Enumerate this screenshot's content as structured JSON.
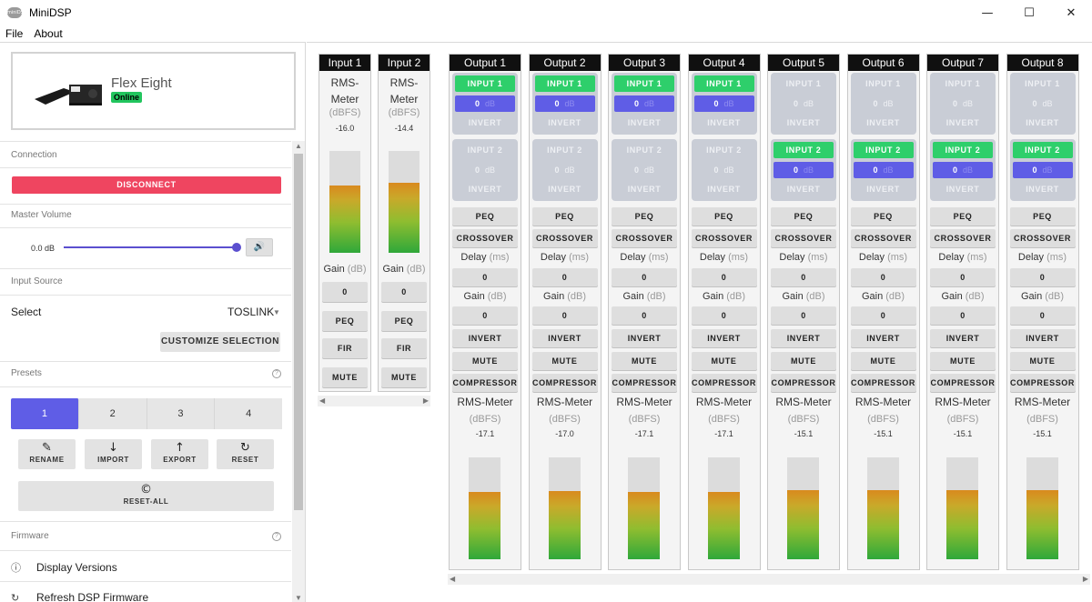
{
  "window": {
    "title": "MiniDSP",
    "icon_text": "miniDSP",
    "controls": {
      "minimize": "—",
      "maximize": "☐",
      "close": "✕"
    }
  },
  "menu": [
    "File",
    "About"
  ],
  "device": {
    "name": "Flex Eight",
    "status": "Online"
  },
  "connection": {
    "label": "Connection",
    "button": "DISCONNECT"
  },
  "master_volume": {
    "label": "Master Volume",
    "value": "0.0 dB",
    "level": 1.0
  },
  "input_source": {
    "label": "Input Source",
    "select_label": "Select",
    "value": "TOSLINK",
    "customize": "CUSTOMIZE SELECTION"
  },
  "presets": {
    "label": "Presets",
    "tabs": [
      "1",
      "2",
      "3",
      "4"
    ],
    "active": "1",
    "actions": [
      {
        "label": "RENAME",
        "icon": "edit-icon"
      },
      {
        "label": "IMPORT",
        "icon": "import-icon"
      },
      {
        "label": "EXPORT",
        "icon": "export-icon"
      },
      {
        "label": "RESET",
        "icon": "reset-icon"
      }
    ],
    "reset_all": "RESET-ALL"
  },
  "firmware": {
    "label": "Firmware",
    "items": [
      "Display Versions",
      "Refresh DSP Firmware"
    ]
  },
  "inputs": [
    {
      "name": "Input 1",
      "meter_title": "RMS-Meter",
      "meter_unit": "(dBFS)",
      "meter_value": "-16.0",
      "level": 0.66,
      "gain_label": "Gain",
      "gain_unit": "(dB)",
      "gain": "0",
      "buttons": [
        "PEQ",
        "FIR",
        "MUTE"
      ]
    },
    {
      "name": "Input 2",
      "meter_title": "RMS-Meter",
      "meter_unit": "(dBFS)",
      "meter_value": "-14.4",
      "level": 0.69,
      "gain_label": "Gain",
      "gain_unit": "(dB)",
      "gain": "0",
      "buttons": [
        "PEQ",
        "FIR",
        "MUTE"
      ]
    }
  ],
  "outputs": [
    {
      "name": "Output 1",
      "routes": [
        {
          "name": "INPUT 1",
          "gain": "0",
          "unit": "dB",
          "invert": "INVERT",
          "active": true
        },
        {
          "name": "INPUT 2",
          "gain": "0",
          "unit": "dB",
          "invert": "INVERT",
          "active": false
        }
      ],
      "peq": "PEQ",
      "crossover": "CROSSOVER",
      "delay_label": "Delay",
      "delay_unit": "(ms)",
      "delay": "0",
      "gain_label": "Gain",
      "gain_unit": "(dB)",
      "gain": "0",
      "invert": "INVERT",
      "mute": "MUTE",
      "compressor": "COMPRESSOR",
      "meter_title": "RMS-Meter",
      "meter_unit": "(dBFS)",
      "meter_value": "-17.1",
      "level": 0.66
    },
    {
      "name": "Output 2",
      "routes": [
        {
          "name": "INPUT 1",
          "gain": "0",
          "unit": "dB",
          "invert": "INVERT",
          "active": true
        },
        {
          "name": "INPUT 2",
          "gain": "0",
          "unit": "dB",
          "invert": "INVERT",
          "active": false
        }
      ],
      "peq": "PEQ",
      "crossover": "CROSSOVER",
      "delay_label": "Delay",
      "delay_unit": "(ms)",
      "delay": "0",
      "gain_label": "Gain",
      "gain_unit": "(dB)",
      "gain": "0",
      "invert": "INVERT",
      "mute": "MUTE",
      "compressor": "COMPRESSOR",
      "meter_title": "RMS-Meter",
      "meter_unit": "(dBFS)",
      "meter_value": "-17.0",
      "level": 0.67
    },
    {
      "name": "Output 3",
      "routes": [
        {
          "name": "INPUT 1",
          "gain": "0",
          "unit": "dB",
          "invert": "INVERT",
          "active": true
        },
        {
          "name": "INPUT 2",
          "gain": "0",
          "unit": "dB",
          "invert": "INVERT",
          "active": false
        }
      ],
      "peq": "PEQ",
      "crossover": "CROSSOVER",
      "delay_label": "Delay",
      "delay_unit": "(ms)",
      "delay": "0",
      "gain_label": "Gain",
      "gain_unit": "(dB)",
      "gain": "0",
      "invert": "INVERT",
      "mute": "MUTE",
      "compressor": "COMPRESSOR",
      "meter_title": "RMS-Meter",
      "meter_unit": "(dBFS)",
      "meter_value": "-17.1",
      "level": 0.66
    },
    {
      "name": "Output 4",
      "routes": [
        {
          "name": "INPUT 1",
          "gain": "0",
          "unit": "dB",
          "invert": "INVERT",
          "active": true
        },
        {
          "name": "INPUT 2",
          "gain": "0",
          "unit": "dB",
          "invert": "INVERT",
          "active": false
        }
      ],
      "peq": "PEQ",
      "crossover": "CROSSOVER",
      "delay_label": "Delay",
      "delay_unit": "(ms)",
      "delay": "0",
      "gain_label": "Gain",
      "gain_unit": "(dB)",
      "gain": "0",
      "invert": "INVERT",
      "mute": "MUTE",
      "compressor": "COMPRESSOR",
      "meter_title": "RMS-Meter",
      "meter_unit": "(dBFS)",
      "meter_value": "-17.1",
      "level": 0.66
    },
    {
      "name": "Output 5",
      "routes": [
        {
          "name": "INPUT 1",
          "gain": "0",
          "unit": "dB",
          "invert": "INVERT",
          "active": false
        },
        {
          "name": "INPUT 2",
          "gain": "0",
          "unit": "dB",
          "invert": "INVERT",
          "active": true
        }
      ],
      "peq": "PEQ",
      "crossover": "CROSSOVER",
      "delay_label": "Delay",
      "delay_unit": "(ms)",
      "delay": "0",
      "gain_label": "Gain",
      "gain_unit": "(dB)",
      "gain": "0",
      "invert": "INVERT",
      "mute": "MUTE",
      "compressor": "COMPRESSOR",
      "meter_title": "RMS-Meter",
      "meter_unit": "(dBFS)",
      "meter_value": "-15.1",
      "level": 0.68
    },
    {
      "name": "Output 6",
      "routes": [
        {
          "name": "INPUT 1",
          "gain": "0",
          "unit": "dB",
          "invert": "INVERT",
          "active": false
        },
        {
          "name": "INPUT 2",
          "gain": "0",
          "unit": "dB",
          "invert": "INVERT",
          "active": true
        }
      ],
      "peq": "PEQ",
      "crossover": "CROSSOVER",
      "delay_label": "Delay",
      "delay_unit": "(ms)",
      "delay": "0",
      "gain_label": "Gain",
      "gain_unit": "(dB)",
      "gain": "0",
      "invert": "INVERT",
      "mute": "MUTE",
      "compressor": "COMPRESSOR",
      "meter_title": "RMS-Meter",
      "meter_unit": "(dBFS)",
      "meter_value": "-15.1",
      "level": 0.68
    },
    {
      "name": "Output 7",
      "routes": [
        {
          "name": "INPUT 1",
          "gain": "0",
          "unit": "dB",
          "invert": "INVERT",
          "active": false
        },
        {
          "name": "INPUT 2",
          "gain": "0",
          "unit": "dB",
          "invert": "INVERT",
          "active": true
        }
      ],
      "peq": "PEQ",
      "crossover": "CROSSOVER",
      "delay_label": "Delay",
      "delay_unit": "(ms)",
      "delay": "0",
      "gain_label": "Gain",
      "gain_unit": "(dB)",
      "gain": "0",
      "invert": "INVERT",
      "mute": "MUTE",
      "compressor": "COMPRESSOR",
      "meter_title": "RMS-Meter",
      "meter_unit": "(dBFS)",
      "meter_value": "-15.1",
      "level": 0.68
    },
    {
      "name": "Output 8",
      "routes": [
        {
          "name": "INPUT 1",
          "gain": "0",
          "unit": "dB",
          "invert": "INVERT",
          "active": false
        },
        {
          "name": "INPUT 2",
          "gain": "0",
          "unit": "dB",
          "invert": "INVERT",
          "active": true
        }
      ],
      "peq": "PEQ",
      "crossover": "CROSSOVER",
      "delay_label": "Delay",
      "delay_unit": "(ms)",
      "delay": "0",
      "gain_label": "Gain",
      "gain_unit": "(dB)",
      "gain": "0",
      "invert": "INVERT",
      "mute": "MUTE",
      "compressor": "COMPRESSOR",
      "meter_title": "RMS-Meter",
      "meter_unit": "(dBFS)",
      "meter_value": "-15.1",
      "level": 0.68
    }
  ],
  "colors": {
    "accent": "#5f5de6",
    "active_route": "#2ecf6b",
    "danger": "#ef4560"
  }
}
